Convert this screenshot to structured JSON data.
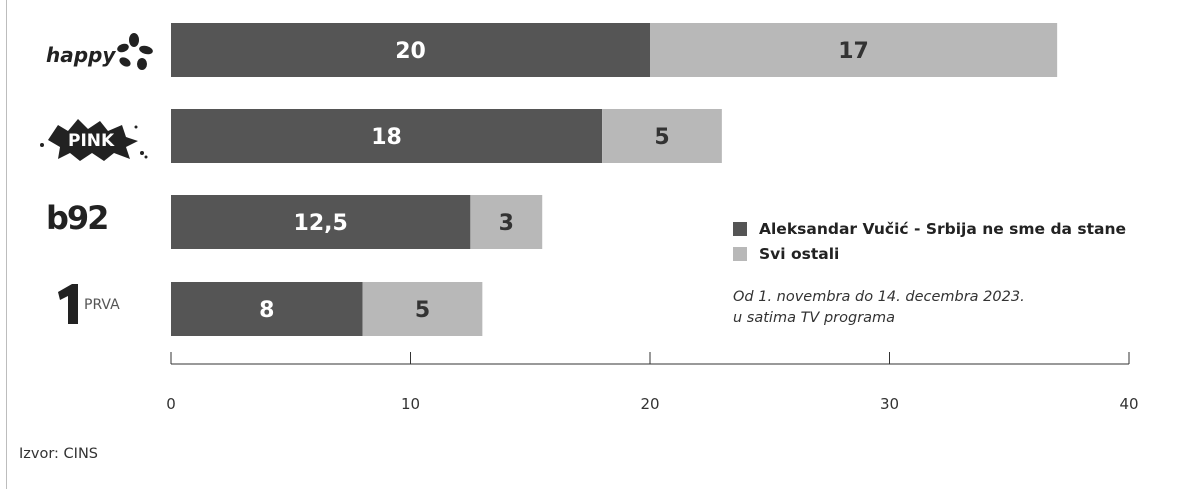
{
  "colors": {
    "primary": "#555555",
    "secondary": "#b8b8b8",
    "primary_text": "#ffffff",
    "secondary_text": "#333333"
  },
  "logos": {
    "happy": {
      "text": "happy",
      "icon": "flower-icon"
    },
    "pink": {
      "text": "PINK",
      "icon": "splash-icon"
    },
    "b92": {
      "text": "b92"
    },
    "prva": {
      "text": "PRVA",
      "icon": "number-one-icon"
    }
  },
  "legend": {
    "primary": "Aleksandar Vučić - Srbija ne sme da stane",
    "secondary": "Svi ostali"
  },
  "note_lines": [
    "Od 1. novembra do 14. decembra 2023.",
    "u satima TV programa"
  ],
  "source": "Izvor: CINS",
  "chart_data": {
    "type": "bar",
    "orientation": "horizontal",
    "stacked": true,
    "categories": [
      "happy",
      "PINK",
      "b92",
      "PRVA"
    ],
    "series": [
      {
        "name": "Aleksandar Vučić - Srbija ne sme da stane",
        "values": [
          20,
          18,
          12.5,
          8
        ],
        "labels": [
          "20",
          "18",
          "12,5",
          "8"
        ]
      },
      {
        "name": "Svi ostali",
        "values": [
          17,
          5,
          3,
          5
        ],
        "labels": [
          "17",
          "5",
          "3",
          "5"
        ]
      }
    ],
    "xlim": [
      0,
      40
    ],
    "xticks": [
      0,
      10,
      20,
      30,
      40
    ],
    "grid": false,
    "legend_position": "right"
  }
}
